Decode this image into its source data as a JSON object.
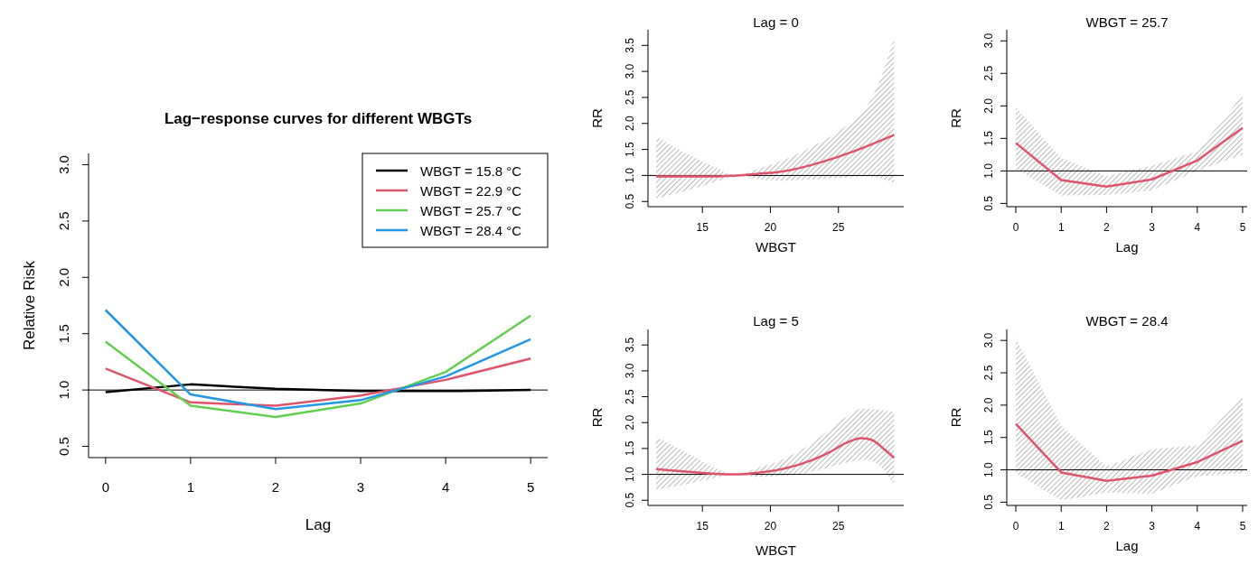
{
  "chart_data": [
    {
      "type": "line",
      "title": "Lag−response curves for different WBGTs",
      "xlabel": "Lag",
      "ylabel": "Relative Risk",
      "xlim": [
        -0.2,
        5.2
      ],
      "xticks": [
        0,
        1,
        2,
        3,
        4,
        5
      ],
      "ylim": [
        0.4,
        3.1
      ],
      "yticks": [
        {
          "value": 0.5,
          "label": "0.5"
        },
        {
          "value": 1,
          "label": "1.0"
        },
        {
          "value": 1.5,
          "label": "1.5"
        },
        {
          "value": 2,
          "label": "2.0"
        },
        {
          "value": 2.5,
          "label": "2.5"
        },
        {
          "value": 3,
          "label": "3.0"
        }
      ],
      "legend": "top right",
      "ref_lines": [
        {
          "axis": "y",
          "value": 1
        }
      ],
      "x": [
        0,
        1,
        2,
        3,
        4,
        5
      ],
      "series": [
        {
          "name": "WBGT = 15.8 °C",
          "color": "#000000",
          "values": [
            0.98,
            1.05,
            1.01,
            0.99,
            0.99,
            1.0
          ]
        },
        {
          "name": "WBGT = 22.9 °C",
          "color": "#df536b",
          "values": [
            1.19,
            0.89,
            0.86,
            0.95,
            1.09,
            1.28
          ]
        },
        {
          "name": "WBGT = 25.7 °C",
          "color": "#61d04f",
          "values": [
            1.43,
            0.86,
            0.76,
            0.88,
            1.16,
            1.66
          ]
        },
        {
          "name": "WBGT = 28.4 °C",
          "color": "#2297e6",
          "values": [
            1.71,
            0.96,
            0.83,
            0.91,
            1.12,
            1.45
          ]
        }
      ]
    },
    {
      "type": "line",
      "title": "Lag = 0",
      "xlabel": "WBGT",
      "ylabel": "RR",
      "xlim": [
        11,
        29.8
      ],
      "xticks": [
        15,
        20,
        25
      ],
      "ylim": [
        0.4,
        3.8
      ],
      "yticks": [
        {
          "value": 0.5,
          "label": "0.5"
        },
        {
          "value": 1,
          "label": "1.0"
        },
        {
          "value": 1.5,
          "label": "1.5"
        },
        {
          "value": 2,
          "label": "2.0"
        },
        {
          "value": 2.5,
          "label": "2.5"
        },
        {
          "value": 3,
          "label": "3.0"
        },
        {
          "value": 3.5,
          "label": "3.5"
        }
      ],
      "ref_lines": [
        {
          "axis": "y",
          "value": 1
        }
      ],
      "series": [
        {
          "color": "#df536b",
          "x": [
            11.6,
            14,
            16,
            17.5,
            19,
            21,
            23,
            25,
            27,
            28,
            29.1
          ],
          "values": [
            0.98,
            0.98,
            0.98,
            1.0,
            1.03,
            1.08,
            1.2,
            1.36,
            1.55,
            1.66,
            1.78
          ],
          "lower": [
            0.55,
            0.72,
            0.88,
            1.0,
            0.93,
            0.9,
            0.92,
            0.95,
            0.98,
            0.95,
            0.85
          ],
          "upper": [
            1.75,
            1.4,
            1.15,
            1.0,
            1.12,
            1.3,
            1.55,
            1.85,
            2.3,
            2.8,
            3.65
          ]
        }
      ]
    },
    {
      "type": "line",
      "title": "WBGT = 25.7",
      "xlabel": "Lag",
      "ylabel": "RR",
      "xlim": [
        -0.2,
        5.1
      ],
      "xticks": [
        0,
        1,
        2,
        3,
        4,
        5
      ],
      "ylim": [
        0.45,
        3.17
      ],
      "yticks": [
        {
          "value": 0.5,
          "label": "0.5"
        },
        {
          "value": 1,
          "label": "1.0"
        },
        {
          "value": 1.5,
          "label": "1.5"
        },
        {
          "value": 2,
          "label": "2.0"
        },
        {
          "value": 2.5,
          "label": "2.5"
        },
        {
          "value": 3,
          "label": "3.0"
        }
      ],
      "ref_lines": [
        {
          "axis": "y",
          "value": 1
        }
      ],
      "x": [
        0,
        1,
        2,
        3,
        4,
        5
      ],
      "series": [
        {
          "color": "#df536b",
          "values": [
            1.43,
            0.86,
            0.76,
            0.87,
            1.16,
            1.66
          ],
          "lower": [
            1.03,
            0.62,
            0.63,
            0.7,
            1.0,
            1.25
          ],
          "upper": [
            1.98,
            1.2,
            0.92,
            1.08,
            1.3,
            2.17
          ]
        }
      ]
    },
    {
      "type": "line",
      "title": "Lag = 5",
      "xlabel": "WBGT",
      "ylabel": "RR",
      "xlim": [
        11,
        29.8
      ],
      "xticks": [
        15,
        20,
        25
      ],
      "ylim": [
        0.4,
        3.8
      ],
      "yticks": [
        {
          "value": 0.5,
          "label": "0.5"
        },
        {
          "value": 1,
          "label": "1.0"
        },
        {
          "value": 1.5,
          "label": "1.5"
        },
        {
          "value": 2,
          "label": "2.0"
        },
        {
          "value": 2.5,
          "label": "2.5"
        },
        {
          "value": 3,
          "label": "3.0"
        },
        {
          "value": 3.5,
          "label": "3.5"
        }
      ],
      "ref_lines": [
        {
          "axis": "y",
          "value": 1
        }
      ],
      "series": [
        {
          "color": "#df536b",
          "x": [
            11.6,
            14,
            16,
            17.5,
            19,
            21,
            23,
            24.5,
            25.5,
            26.7,
            27.5,
            28.3,
            29.1
          ],
          "values": [
            1.1,
            1.05,
            1.01,
            1.0,
            1.03,
            1.11,
            1.27,
            1.45,
            1.6,
            1.7,
            1.66,
            1.5,
            1.32
          ],
          "lower": [
            0.7,
            0.82,
            0.93,
            1.0,
            0.95,
            0.97,
            1.05,
            1.15,
            1.22,
            1.28,
            1.25,
            1.1,
            0.78
          ],
          "upper": [
            1.72,
            1.4,
            1.12,
            1.0,
            1.12,
            1.3,
            1.6,
            1.9,
            2.1,
            2.27,
            2.26,
            2.24,
            2.2
          ]
        }
      ]
    },
    {
      "type": "line",
      "title": "WBGT = 28.4",
      "xlabel": "Lag",
      "ylabel": "RR",
      "xlim": [
        -0.2,
        5.1
      ],
      "xticks": [
        0,
        1,
        2,
        3,
        4,
        5
      ],
      "ylim": [
        0.45,
        3.17
      ],
      "yticks": [
        {
          "value": 0.5,
          "label": "0.5"
        },
        {
          "value": 1,
          "label": "1.0"
        },
        {
          "value": 1.5,
          "label": "1.5"
        },
        {
          "value": 2,
          "label": "2.0"
        },
        {
          "value": 2.5,
          "label": "2.5"
        },
        {
          "value": 3,
          "label": "3.0"
        }
      ],
      "ref_lines": [
        {
          "axis": "y",
          "value": 1
        }
      ],
      "x": [
        0,
        1,
        2,
        3,
        4,
        5
      ],
      "series": [
        {
          "color": "#df536b",
          "values": [
            1.71,
            0.96,
            0.83,
            0.91,
            1.12,
            1.45
          ],
          "lower": [
            0.95,
            0.53,
            0.65,
            0.63,
            0.9,
            0.95
          ],
          "upper": [
            3.03,
            1.68,
            1.05,
            1.32,
            1.38,
            2.15
          ]
        }
      ]
    }
  ]
}
